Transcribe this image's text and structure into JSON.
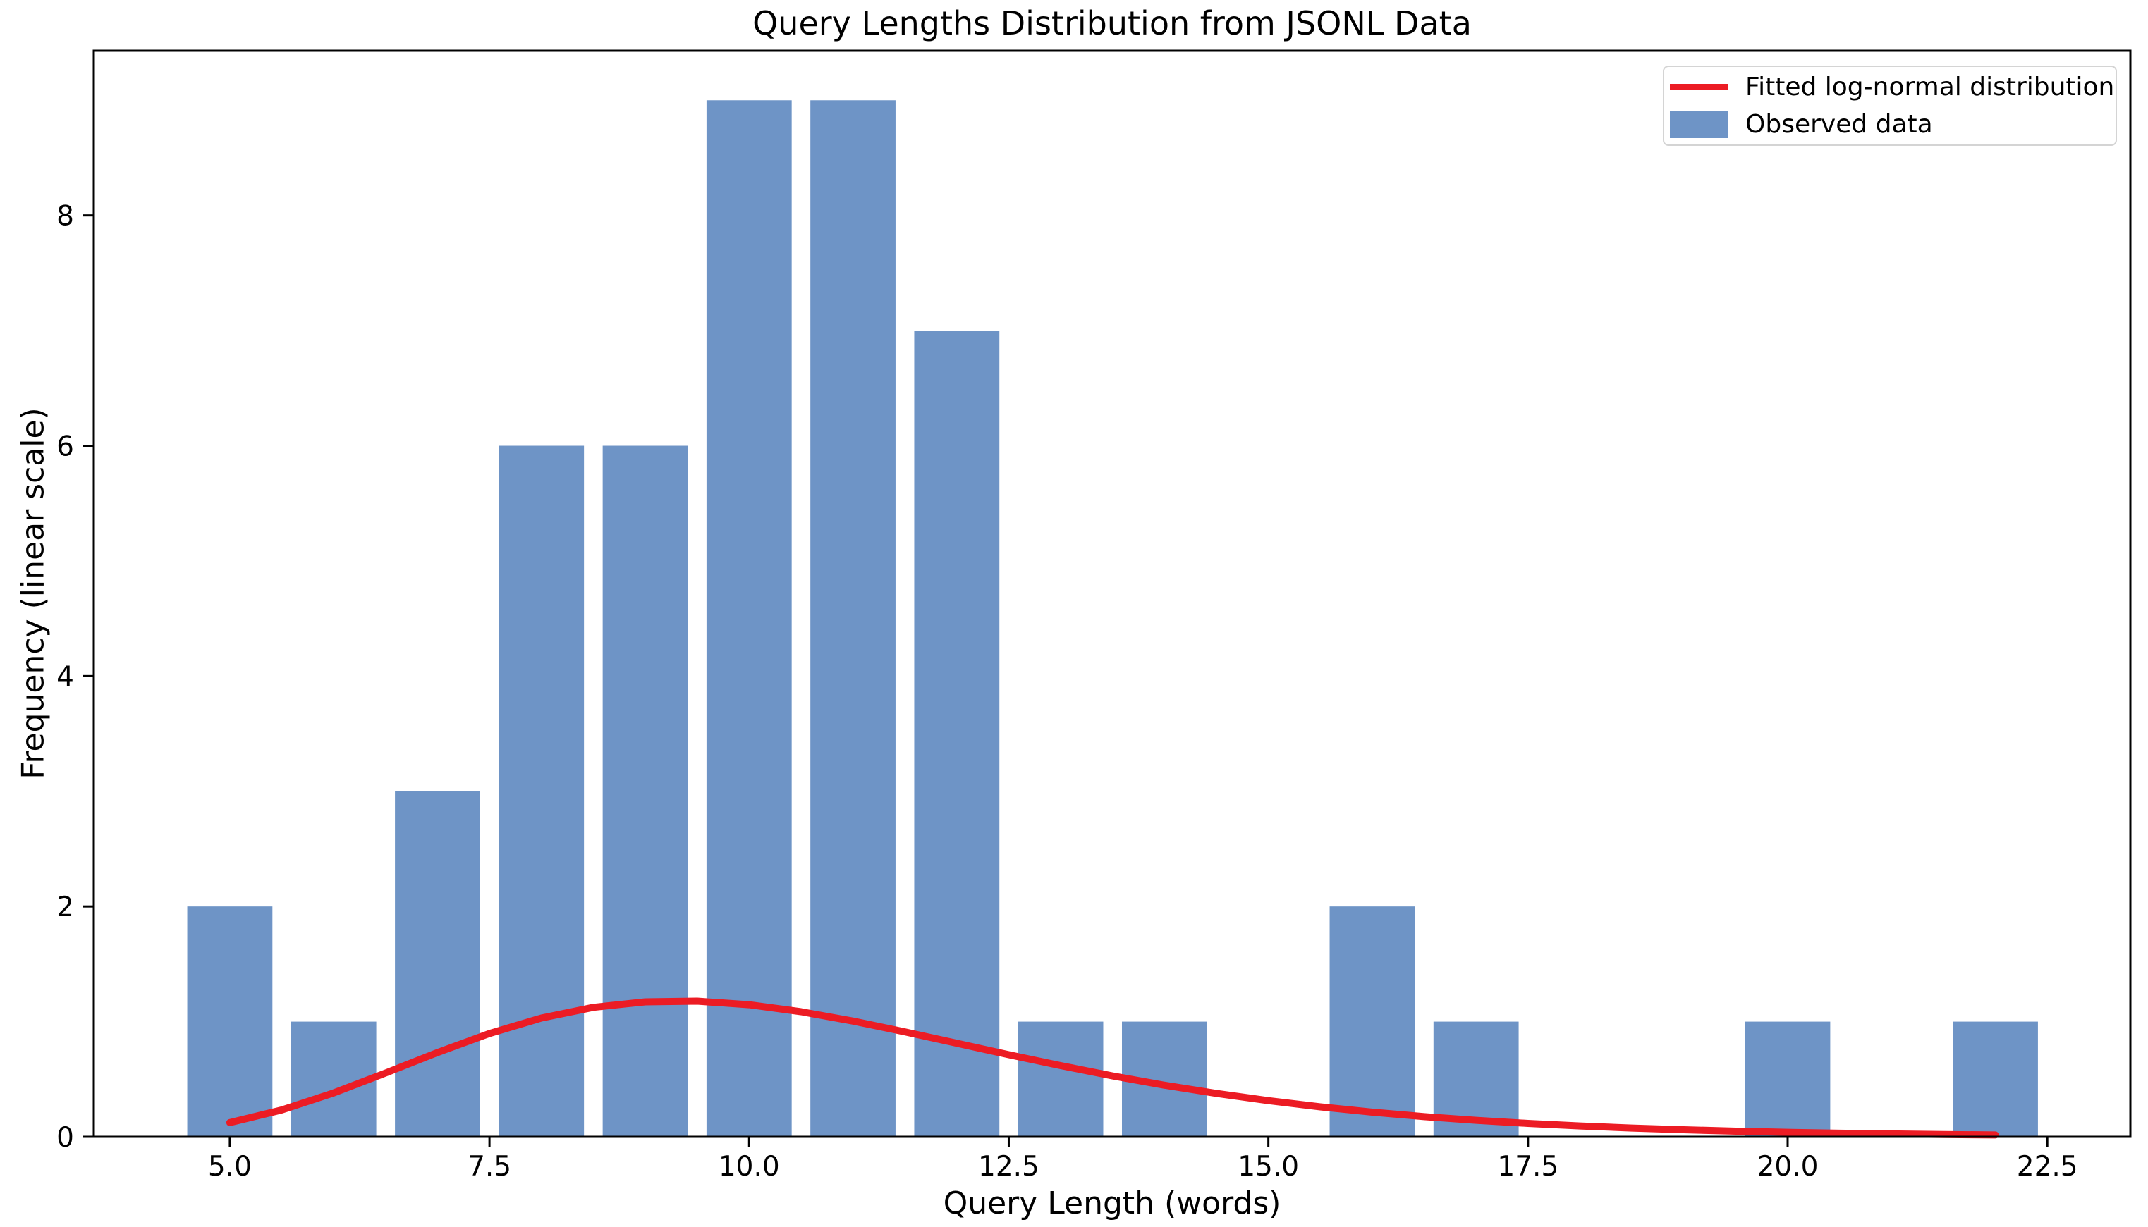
{
  "colors": {
    "bar": "#6E94C6",
    "curve": "#EC1C24",
    "spine": "#000000",
    "text": "#000000",
    "legend_border": "#D4D4D4",
    "background": "#FFFFFF"
  },
  "legend": {
    "position": "upper right",
    "entries": [
      {
        "label": "Fitted log-normal distribution",
        "marker": "line",
        "color": "#EC1C24"
      },
      {
        "label": "Observed data",
        "marker": "patch",
        "color": "#6E94C6"
      }
    ]
  },
  "chart_data": {
    "type": "bar",
    "subtype": "histogram-with-fitted-curve",
    "title": "Query Lengths Distribution from JSONL Data",
    "xlabel": "Query Length (words)",
    "ylabel": "Frequency (linear scale)",
    "grid": false,
    "xlim": [
      3.69,
      23.3
    ],
    "ylim": [
      0,
      9.43
    ],
    "xticks": {
      "values": [
        5,
        7.5,
        10,
        12.5,
        15,
        17.5,
        20,
        22.5
      ],
      "labels": [
        "5.0",
        "7.5",
        "10.0",
        "12.5",
        "15.0",
        "17.5",
        "20.0",
        "22.5"
      ]
    },
    "yticks": {
      "values": [
        0,
        2,
        4,
        6,
        8
      ],
      "labels": [
        "0",
        "2",
        "4",
        "6",
        "8"
      ]
    },
    "categories": [
      5,
      6,
      7,
      8,
      9,
      10,
      11,
      12,
      13,
      14,
      16,
      17,
      20,
      22
    ],
    "values": [
      2,
      1,
      3,
      6,
      6,
      9,
      9,
      7,
      1,
      1,
      2,
      1,
      1,
      1
    ],
    "bar_width": 0.82,
    "series": [
      {
        "name": "Observed data",
        "type": "bar",
        "x": [
          5,
          6,
          7,
          8,
          9,
          10,
          11,
          12,
          13,
          14,
          16,
          17,
          20,
          22
        ],
        "y": [
          2,
          1,
          3,
          6,
          6,
          9,
          9,
          7,
          1,
          1,
          2,
          1,
          1,
          1
        ]
      },
      {
        "name": "Fitted log-normal distribution",
        "type": "line",
        "model": "scaled log-normal pdf",
        "mu_log": 2.3175,
        "sigma_log": 0.2926,
        "scale": 8.42,
        "x": [
          5,
          5.5,
          6,
          6.5,
          7,
          7.5,
          8,
          8.5,
          9,
          9.5,
          10,
          10.5,
          11,
          11.5,
          12,
          12.5,
          13,
          13.5,
          14,
          14.5,
          15,
          15.5,
          16,
          16.5,
          17,
          17.5,
          18,
          18.5,
          19,
          19.5,
          20,
          20.5,
          21,
          21.5,
          22
        ],
        "y": [
          0.123,
          0.233,
          0.381,
          0.554,
          0.732,
          0.897,
          1.031,
          1.124,
          1.172,
          1.178,
          1.147,
          1.086,
          1.005,
          0.911,
          0.812,
          0.713,
          0.618,
          0.529,
          0.448,
          0.377,
          0.314,
          0.26,
          0.214,
          0.175,
          0.143,
          0.116,
          0.094,
          0.076,
          0.061,
          0.049,
          0.039,
          0.031,
          0.025,
          0.02,
          0.016
        ]
      }
    ]
  }
}
